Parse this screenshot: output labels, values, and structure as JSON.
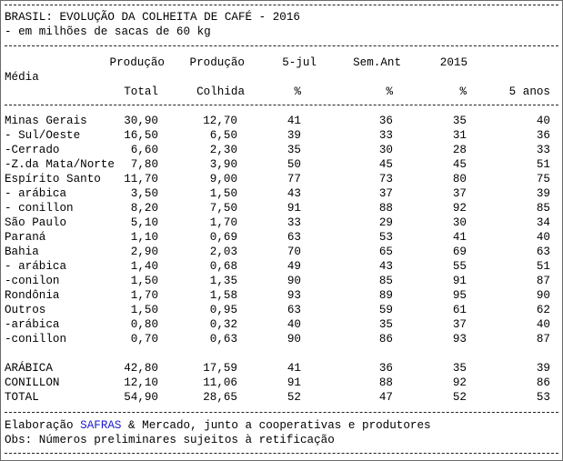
{
  "title": "BRASIL: EVOLUÇÃO DA COLHEITA DE CAFÉ - 2016",
  "subtitle": "- em milhões de sacas de 60 kg",
  "header": {
    "row1": [
      "Produção",
      "Produção",
      "5-jul",
      "Sem.Ant",
      "2015",
      ""
    ],
    "media_label": "Média",
    "row2": [
      "Total",
      "Colhida",
      "%",
      "%",
      "%",
      "5 anos"
    ]
  },
  "rows": [
    {
      "name": "Minas Gerais",
      "values": [
        "30,90",
        "12,70",
        "41",
        "36",
        "35",
        "40"
      ]
    },
    {
      "name": "- Sul/Oeste",
      "values": [
        "16,50",
        "6,50",
        "39",
        "33",
        "31",
        "36"
      ]
    },
    {
      "name": "-Cerrado",
      "values": [
        "6,60",
        "2,30",
        "35",
        "30",
        "28",
        "33"
      ]
    },
    {
      "name": "-Z.da Mata/Norte",
      "values": [
        "7,80",
        "3,90",
        "50",
        "45",
        "45",
        "51"
      ]
    },
    {
      "name": "Espírito Santo",
      "values": [
        "11,70",
        "9,00",
        "77",
        "73",
        "80",
        "75"
      ]
    },
    {
      "name": "- arábica",
      "values": [
        "3,50",
        "1,50",
        "43",
        "37",
        "37",
        "39"
      ]
    },
    {
      "name": "- conillon",
      "values": [
        "8,20",
        "7,50",
        "91",
        "88",
        "92",
        "85"
      ]
    },
    {
      "name": "São Paulo",
      "values": [
        "5,10",
        "1,70",
        "33",
        "29",
        "30",
        "34"
      ]
    },
    {
      "name": "Paraná",
      "values": [
        "1,10",
        "0,69",
        "63",
        "53",
        "41",
        "40"
      ]
    },
    {
      "name": "Bahia",
      "values": [
        "2,90",
        "2,03",
        "70",
        "65",
        "69",
        "63"
      ]
    },
    {
      "name": "- arábica",
      "values": [
        "1,40",
        "0,68",
        "49",
        "43",
        "55",
        "51"
      ]
    },
    {
      "name": "-conilon",
      "values": [
        "1,50",
        "1,35",
        "90",
        "85",
        "91",
        "87"
      ]
    },
    {
      "name": "Rondônia",
      "values": [
        "1,70",
        "1,58",
        "93",
        "89",
        "95",
        "90"
      ]
    },
    {
      "name": "Outros",
      "values": [
        "1,50",
        "0,95",
        "63",
        "59",
        "61",
        "62"
      ]
    },
    {
      "name": "-arábica",
      "values": [
        "0,80",
        "0,32",
        "40",
        "35",
        "37",
        "40"
      ]
    },
    {
      "name": "-conillon",
      "values": [
        "0,70",
        "0,63",
        "90",
        "86",
        "93",
        "87"
      ]
    }
  ],
  "totals": [
    {
      "name": "ARÁBICA",
      "values": [
        "42,80",
        "17,59",
        "41",
        "36",
        "35",
        "39"
      ]
    },
    {
      "name": "CONILLON",
      "values": [
        "12,10",
        "11,06",
        "91",
        "88",
        "92",
        "86"
      ]
    },
    {
      "name": "TOTAL",
      "values": [
        "54,90",
        "28,65",
        "52",
        "47",
        "52",
        "53"
      ]
    }
  ],
  "footer": {
    "source_prefix": "Elaboração ",
    "source_highlight": "SAFRAS",
    "source_suffix": " & Mercado, junto a cooperativas e produtores",
    "note": "Obs: Números preliminares sujeitos à retificação"
  },
  "colors": {
    "highlight": "#1a1acc",
    "text": "#000000",
    "border": "#6b6b6b"
  }
}
